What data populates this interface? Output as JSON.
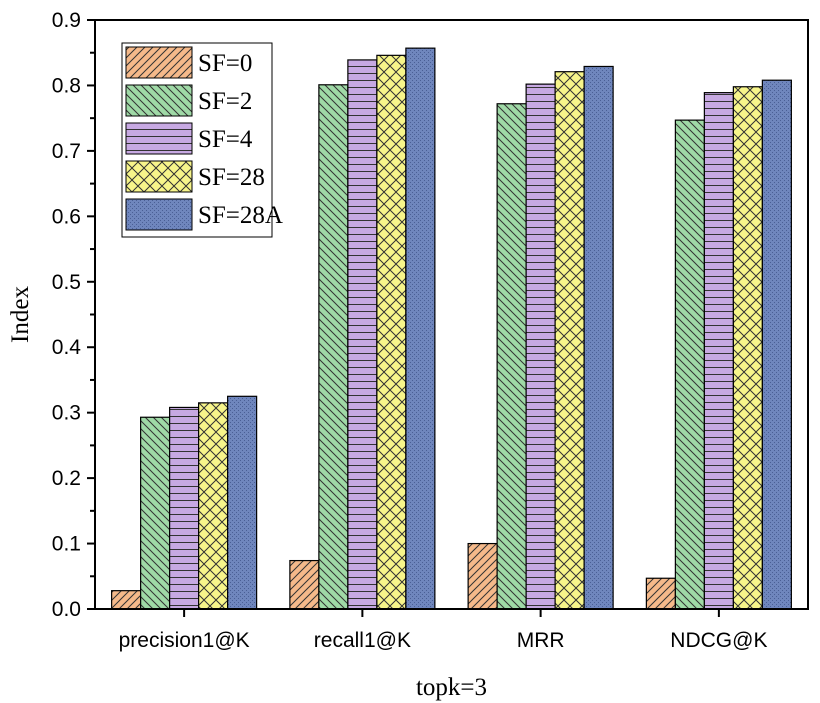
{
  "chart_data": {
    "type": "bar",
    "categories": [
      "precision1@K",
      "recall1@K",
      "MRR",
      "NDCG@K"
    ],
    "series": [
      {
        "name": "SF=0",
        "values": [
          0.028,
          0.074,
          0.1,
          0.047
        ],
        "color": "#f5b98a",
        "pattern": "diag-up"
      },
      {
        "name": "SF=2",
        "values": [
          0.293,
          0.801,
          0.772,
          0.747
        ],
        "color": "#9fd9a6",
        "pattern": "diag-down"
      },
      {
        "name": "SF=4",
        "values": [
          0.308,
          0.839,
          0.802,
          0.789
        ],
        "color": "#c7a9e2",
        "pattern": "horizontal"
      },
      {
        "name": "SF=28",
        "values": [
          0.315,
          0.846,
          0.821,
          0.798
        ],
        "color": "#f7f58a",
        "pattern": "crosshatch"
      },
      {
        "name": "SF=28A",
        "values": [
          0.325,
          0.857,
          0.829,
          0.808
        ],
        "color": "#6f86bd",
        "pattern": "dots"
      }
    ],
    "ylim": [
      0,
      0.9
    ],
    "yticks": [
      "0.0",
      "0.1",
      "0.2",
      "0.3",
      "0.4",
      "0.5",
      "0.6",
      "0.7",
      "0.8",
      "0.9"
    ],
    "xlabel": "topk=3",
    "ylabel": "Index",
    "legend_position": "top-left",
    "grid": false
  }
}
